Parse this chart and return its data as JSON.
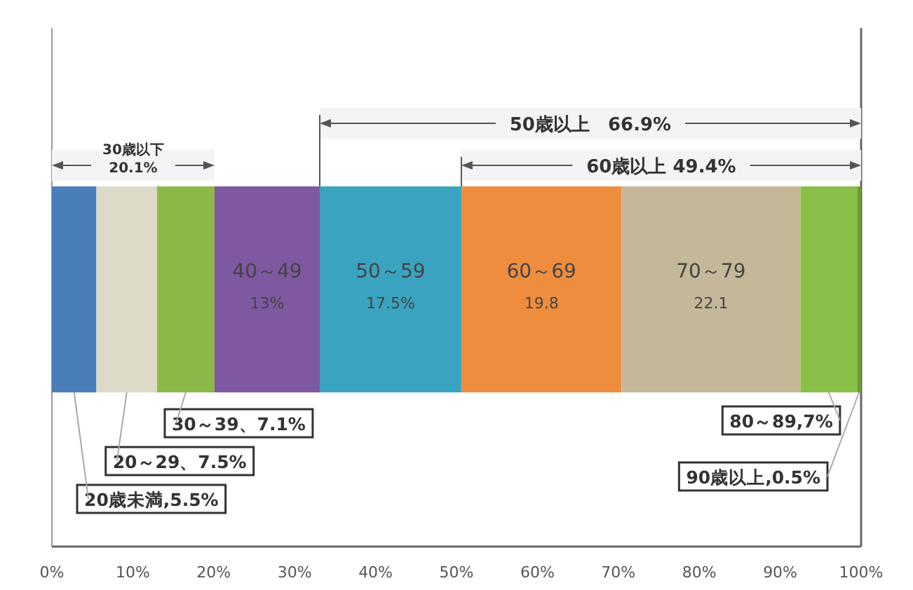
{
  "chart_data": {
    "type": "bar",
    "orientation": "horizontal",
    "stacked": true,
    "grid": false,
    "categories": [
      null
    ],
    "xlim": [
      0,
      100
    ],
    "xticks": [
      {
        "value": 0,
        "label": "0%"
      },
      {
        "value": 10,
        "label": "10%"
      },
      {
        "value": 20,
        "label": "20%"
      },
      {
        "value": 30,
        "label": "30%"
      },
      {
        "value": 40,
        "label": "40%"
      },
      {
        "value": 50,
        "label": "50%"
      },
      {
        "value": 60,
        "label": "60%"
      },
      {
        "value": 70,
        "label": "70%"
      },
      {
        "value": 80,
        "label": "80%"
      },
      {
        "value": 90,
        "label": "90%"
      },
      {
        "value": 100,
        "label": "100%"
      }
    ],
    "series": [
      {
        "name": "20歳未満",
        "color": "#4a7ebb",
        "values": [
          5.5
        ],
        "value_labels": [
          ",5.5%"
        ]
      },
      {
        "name": "20～29",
        "color": "#dddbc8",
        "values": [
          7.5
        ],
        "value_labels": [
          "、7.5%"
        ]
      },
      {
        "name": "30～39",
        "color": "#8cb84a",
        "values": [
          7.1
        ],
        "value_labels": [
          "、7.1%"
        ]
      },
      {
        "name": "40～49",
        "color": "#7e58a0",
        "values": [
          13
        ],
        "value_labels": [
          "13%"
        ]
      },
      {
        "name": "50～59",
        "color": "#3aa3c0",
        "values": [
          17.5
        ],
        "value_labels": [
          "17.5%"
        ]
      },
      {
        "name": "60～69",
        "color": "#ef8d3f",
        "values": [
          19.8
        ],
        "value_labels": [
          "19.8"
        ]
      },
      {
        "name": "70～79",
        "color": "#c4b898",
        "values": [
          22.1
        ],
        "value_labels": [
          "22.1"
        ]
      },
      {
        "name": "80～89",
        "color": "#8ac04a",
        "values": [
          7
        ],
        "value_labels": [
          ",7%"
        ]
      },
      {
        "name": "90歳以上",
        "color": "#6f9a3a",
        "values": [
          0.5
        ],
        "value_labels": [
          ",0.5%"
        ]
      }
    ],
    "bands": [
      {
        "axis": "x",
        "from": 0,
        "to": 20.1,
        "label": "30歳以下 20.1%"
      },
      {
        "axis": "x",
        "from": 33.1,
        "to": 100,
        "label": "50歳以上　66.9%"
      },
      {
        "axis": "x",
        "from": 50.6,
        "to": 100,
        "label": "60歳以上 49.4%"
      }
    ]
  }
}
